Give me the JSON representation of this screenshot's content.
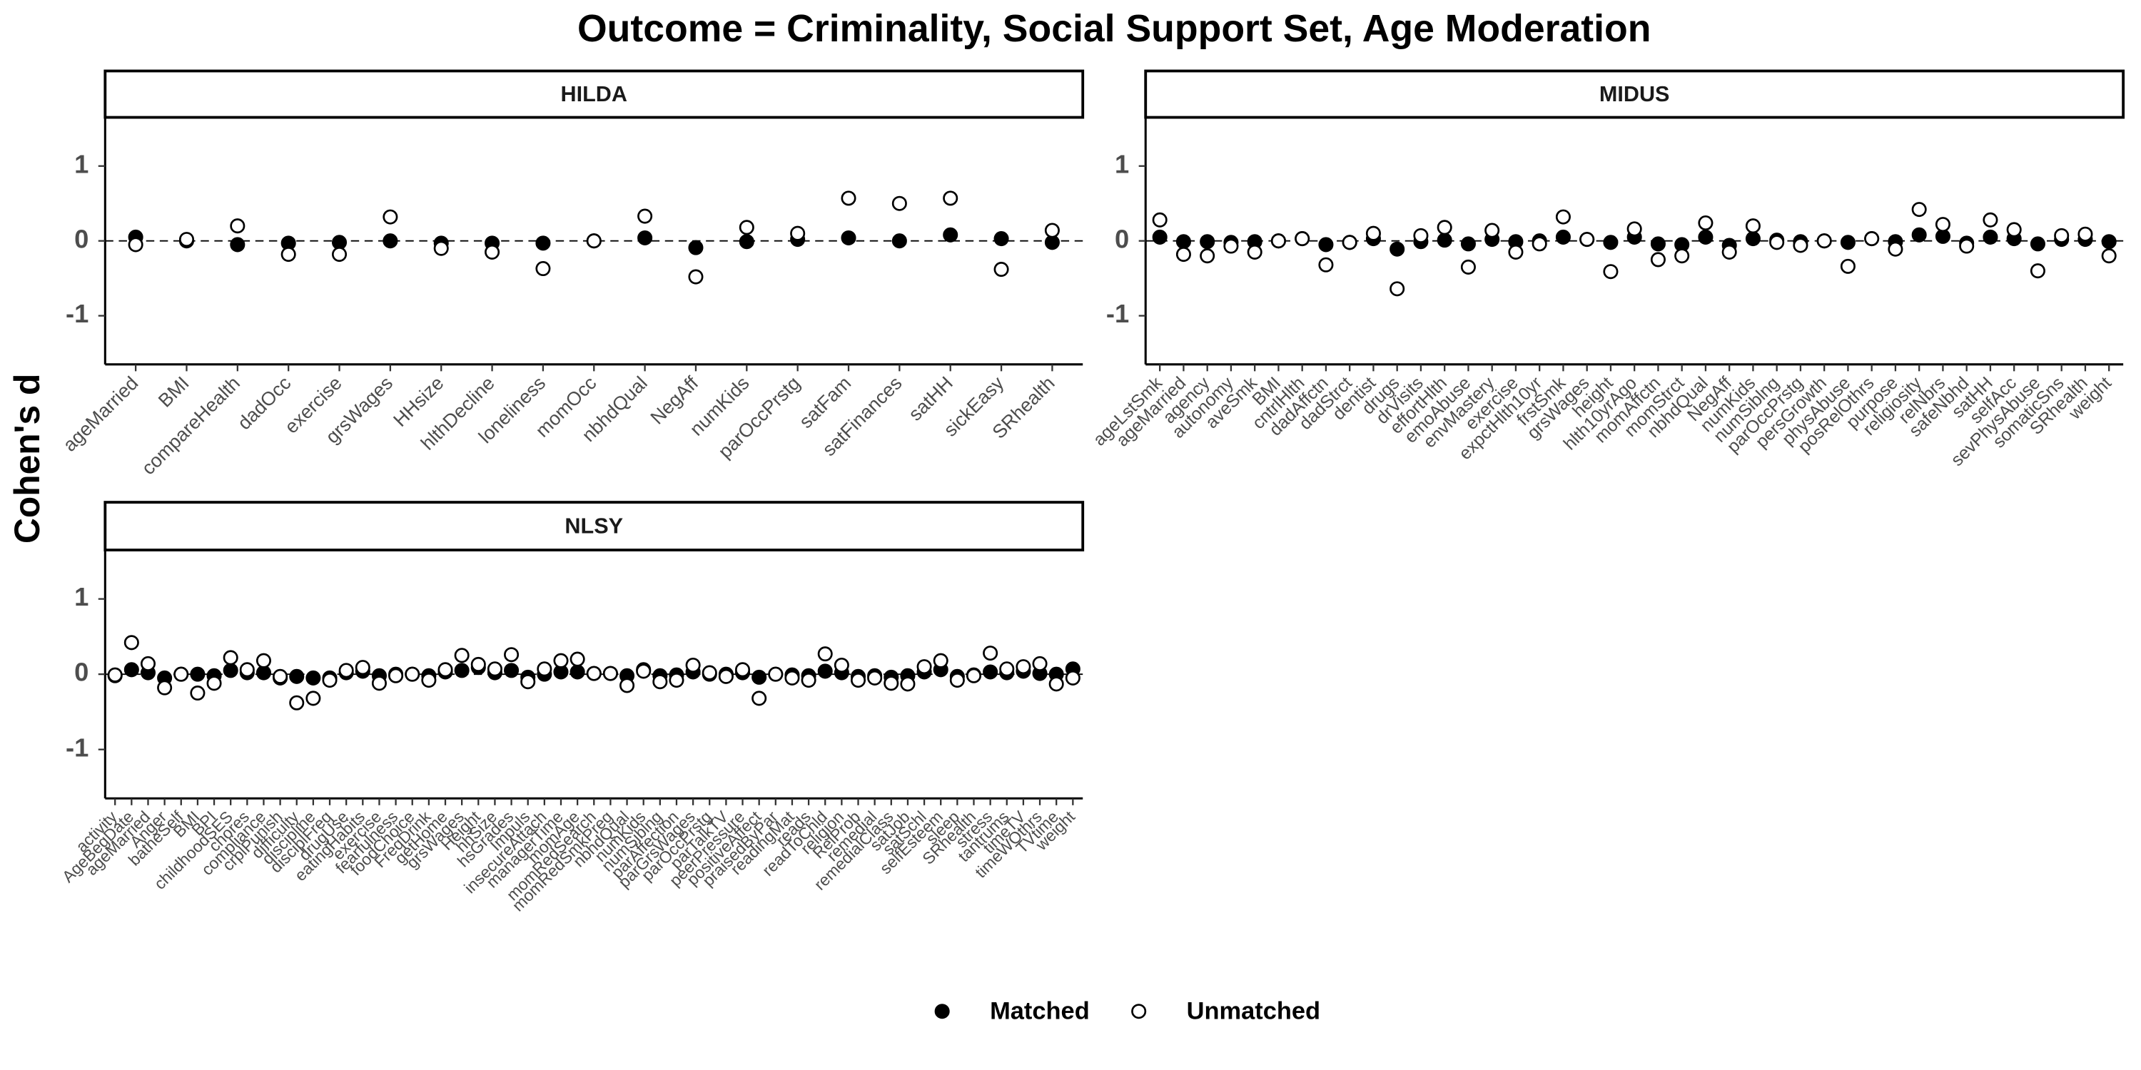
{
  "title": "Outcome = Criminality, Social Support Set, Age Moderation",
  "y_label": "Cohen's d",
  "legend_position": "bottom",
  "chart_data": [
    {
      "type": "dot",
      "title": "HILDA",
      "categories": [
        "ageMarried",
        "BMI",
        "compareHealth",
        "dadOcc",
        "exercise",
        "grsWages",
        "HHsize",
        "hlthDecline",
        "loneliness",
        "momOcc",
        "nbhdQual",
        "NegAff",
        "numKids",
        "parOccPrstg",
        "satFam",
        "satFinances",
        "satHH",
        "sickEasy",
        "SRhealth"
      ],
      "series": [
        {
          "name": "Matched",
          "color": "#000000",
          "filled": true,
          "values": [
            0.05,
            0.0,
            -0.05,
            -0.03,
            -0.02,
            0.0,
            -0.03,
            -0.03,
            -0.03,
            0.0,
            0.04,
            -0.09,
            -0.01,
            0.02,
            0.04,
            0.0,
            0.08,
            0.03,
            -0.02
          ]
        },
        {
          "name": "Unmatched",
          "color": "#000000",
          "filled": false,
          "values": [
            -0.05,
            0.02,
            0.2,
            -0.18,
            -0.18,
            0.32,
            -0.1,
            -0.15,
            -0.37,
            0.0,
            0.33,
            -0.48,
            0.18,
            0.1,
            0.57,
            0.5,
            0.57,
            -0.38,
            0.14
          ]
        }
      ],
      "ylim": [
        -1.65,
        1.65
      ],
      "yticks": [
        -1,
        0,
        1
      ],
      "reference_line": 0
    },
    {
      "type": "dot",
      "title": "MIDUS",
      "categories": [
        "ageLstSmk",
        "ageMarried",
        "agency",
        "autonomy",
        "aveSmk",
        "BMI",
        "cntrlHlth",
        "dadAffctn",
        "dadStrct",
        "dentist",
        "drugs",
        "drVisits",
        "effortHlth",
        "emoAbuse",
        "envMastery",
        "exercise",
        "expctHlth10yr",
        "frstSmk",
        "grsWages",
        "height",
        "hlth10yrAgo",
        "momAffctn",
        "momStrct",
        "nbhdQual",
        "NegAff",
        "numKids",
        "numSiblng",
        "parOccPrstg",
        "persGrowth",
        "physAbuse",
        "posRelOthrs",
        "purpose",
        "religiosity",
        "relNbrs",
        "safeNbhd",
        "satHH",
        "selfAcc",
        "sevPhysAbuse",
        "somaticSns",
        "SRhealth",
        "weight"
      ],
      "series": [
        {
          "name": "Matched",
          "color": "#000000",
          "filled": true,
          "values": [
            0.05,
            -0.01,
            -0.01,
            -0.02,
            -0.01,
            0.0,
            0.03,
            -0.05,
            -0.02,
            0.03,
            -0.11,
            -0.01,
            0.01,
            -0.04,
            0.02,
            -0.01,
            0.0,
            0.05,
            0.02,
            -0.02,
            0.05,
            -0.04,
            -0.05,
            0.05,
            -0.06,
            0.03,
            0.01,
            -0.01,
            0.0,
            -0.02,
            0.03,
            -0.01,
            0.08,
            0.06,
            -0.03,
            0.05,
            0.03,
            -0.04,
            0.02,
            0.02,
            -0.01
          ]
        },
        {
          "name": "Unmatched",
          "color": "#000000",
          "filled": false,
          "values": [
            0.28,
            -0.18,
            -0.2,
            -0.07,
            -0.15,
            0.0,
            0.03,
            -0.32,
            -0.02,
            0.1,
            -0.64,
            0.07,
            0.18,
            -0.35,
            0.14,
            -0.15,
            -0.04,
            0.32,
            0.02,
            -0.41,
            0.16,
            -0.25,
            -0.2,
            0.24,
            -0.15,
            0.2,
            -0.02,
            -0.06,
            0.0,
            -0.34,
            0.03,
            -0.11,
            0.42,
            0.22,
            -0.07,
            0.28,
            0.15,
            -0.4,
            0.07,
            0.09,
            -0.2
          ]
        }
      ],
      "ylim": [
        -1.65,
        1.65
      ],
      "yticks": [
        -1,
        0,
        1
      ],
      "reference_line": 0
    },
    {
      "type": "dot",
      "title": "NLSY",
      "categories": [
        "activity",
        "AgeBegDate",
        "ageMarried",
        "Anger",
        "batheSelf",
        "BMI",
        "BPI",
        "childhoodSES",
        "chores",
        "compliance",
        "crplPunish",
        "difficulty",
        "discipline",
        "disciplFreq",
        "drugUse",
        "eatingHabits",
        "exercise",
        "fearfulness",
        "foodChoice",
        "FreqDrink",
        "getHome",
        "grsWages",
        "Height",
        "hhSize",
        "hsGrades",
        "Impuls",
        "insecureAttach",
        "managerTime",
        "momAge",
        "momRedSearch",
        "momRedSmkPreg",
        "nbhdQual",
        "numKids",
        "numSiblng",
        "parAffection",
        "parGrsWages",
        "parOccPrstg",
        "parTalkTV",
        "peerPressure",
        "positiveAffect",
        "praisedByPar",
        "readingMat",
        "reads",
        "readToChld",
        "religion",
        "RelProb",
        "remedial",
        "remedialClass",
        "satJob",
        "satSchl",
        "selfEsteem",
        "sleep",
        "SRhealth",
        "stress",
        "tantrums",
        "timeTV",
        "timeWOthrs",
        "TVtime",
        "weight"
      ],
      "series": [
        {
          "name": "Matched",
          "color": "#000000",
          "filled": true,
          "values": [
            -0.02,
            0.06,
            0.02,
            -0.05,
            0.0,
            0.0,
            -0.02,
            0.05,
            0.02,
            0.02,
            -0.05,
            -0.03,
            -0.05,
            -0.05,
            0.02,
            0.04,
            -0.02,
            0.0,
            0.0,
            -0.02,
            0.03,
            0.05,
            0.09,
            0.02,
            0.05,
            -0.04,
            0.0,
            0.03,
            0.03,
            0.01,
            0.01,
            -0.02,
            0.06,
            -0.02,
            -0.01,
            0.03,
            0.0,
            0.0,
            0.02,
            -0.04,
            0.0,
            -0.01,
            -0.02,
            0.04,
            0.02,
            -0.03,
            -0.02,
            -0.04,
            -0.02,
            0.03,
            0.06,
            -0.03,
            -0.01,
            0.03,
            0.02,
            0.04,
            0.01,
            0.0,
            0.07
          ]
        },
        {
          "name": "Unmatched",
          "color": "#000000",
          "filled": false,
          "values": [
            -0.01,
            0.42,
            0.14,
            -0.18,
            0.0,
            -0.25,
            -0.12,
            0.22,
            0.06,
            0.18,
            -0.03,
            -0.38,
            -0.32,
            -0.08,
            0.05,
            0.09,
            -0.12,
            -0.02,
            0.0,
            -0.08,
            0.06,
            0.25,
            0.13,
            0.07,
            0.26,
            -0.1,
            0.07,
            0.18,
            0.2,
            0.01,
            0.01,
            -0.15,
            0.04,
            -0.1,
            -0.08,
            0.12,
            0.02,
            -0.03,
            0.06,
            -0.32,
            0.0,
            -0.05,
            -0.08,
            0.27,
            0.12,
            -0.08,
            -0.05,
            -0.12,
            -0.13,
            0.1,
            0.18,
            -0.08,
            -0.02,
            0.28,
            0.07,
            0.1,
            0.14,
            -0.13,
            -0.05
          ]
        }
      ],
      "ylim": [
        -1.65,
        1.65
      ],
      "yticks": [
        -1,
        0,
        1
      ],
      "reference_line": 0
    }
  ]
}
